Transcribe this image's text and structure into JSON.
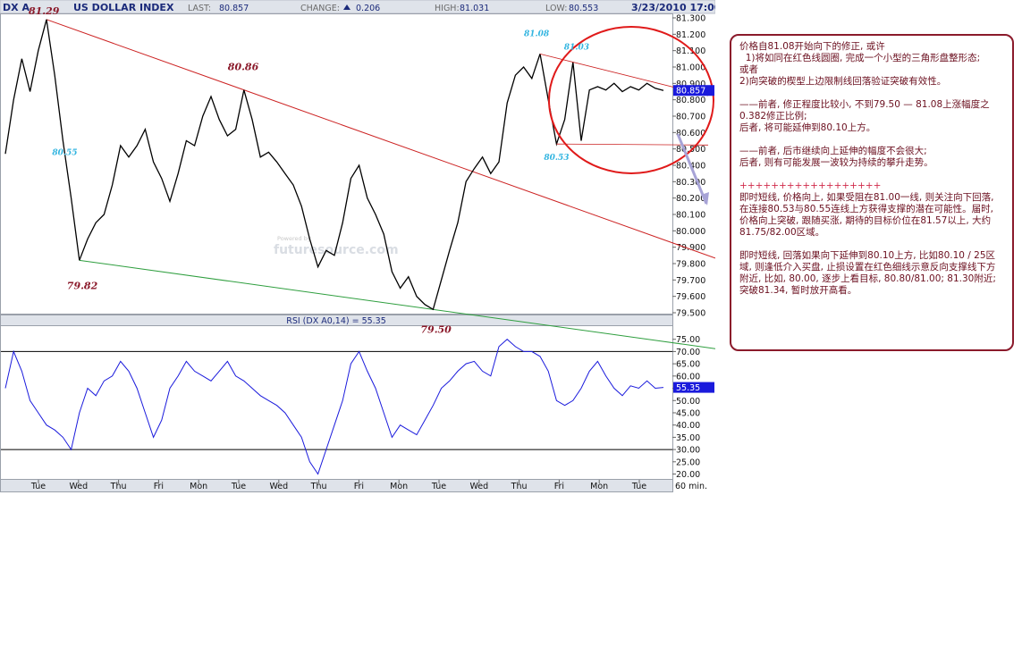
{
  "header": {
    "symbol": "DX A",
    "name": "US DOLLAR INDEX",
    "last_label": "LAST:",
    "last_value": "80.857",
    "change_label": "CHANGE:",
    "change_value": "0.206",
    "high_label": "HIGH:",
    "high_value": "81.031",
    "low_label": "LOW:",
    "low_value": "80.553",
    "datetime": "3/23/2010 17:00"
  },
  "colors": {
    "price": "#000000",
    "rsi": "#1a1adc",
    "trend_down": "#cc2222",
    "trend_up": "#2e9e3e",
    "annotation_red": "#8b1a2b",
    "annotation_cyan": "#33b5e0",
    "arrow": "#a7a3d6",
    "tag_bg": "#1a1adc"
  },
  "watermark": {
    "line1": "Powered by",
    "line2": "futuresource.com"
  },
  "chart_data": [
    {
      "type": "line",
      "name": "US DOLLAR INDEX 60 min",
      "title": "US DOLLAR INDEX",
      "ylim": [
        79.5,
        81.3
      ],
      "y_ticks": [
        "81.300",
        "81.200",
        "81.100",
        "81.000",
        "80.900",
        "80.800",
        "80.700",
        "80.600",
        "80.500",
        "80.400",
        "80.300",
        "80.200",
        "80.100",
        "80.000",
        "79.900",
        "79.800",
        "79.700",
        "79.600",
        "79.500"
      ],
      "x_labels": [
        "Tue",
        "Wed",
        "Thu",
        "Fri",
        "Mon",
        "Tue",
        "Wed",
        "Thu",
        "Fri",
        "Mon",
        "Tue",
        "Wed",
        "Thu",
        "Fri",
        "Mon",
        "Tue"
      ],
      "x_unit": "60 min.",
      "last_tag": "80.857",
      "x": [
        0,
        2,
        4,
        6,
        8,
        10,
        12,
        14,
        16,
        18,
        20,
        22,
        24,
        26,
        28,
        30,
        32,
        34,
        36,
        38,
        40,
        42,
        44,
        46,
        48,
        50,
        52,
        54,
        56,
        58,
        60,
        62,
        64,
        66,
        68,
        70,
        72,
        74,
        76,
        78,
        80,
        82,
        84,
        86,
        88,
        90,
        92,
        94,
        96,
        98,
        100,
        102,
        104,
        106,
        108,
        110,
        112,
        114,
        116,
        118,
        120,
        122,
        124,
        126,
        128,
        130,
        132,
        134,
        136,
        138,
        140,
        142,
        144,
        146,
        148,
        150,
        152,
        154,
        156,
        158,
        160
      ],
      "values": [
        80.47,
        80.8,
        81.05,
        80.85,
        81.1,
        81.29,
        80.95,
        80.55,
        80.2,
        79.82,
        79.95,
        80.05,
        80.1,
        80.28,
        80.52,
        80.45,
        80.52,
        80.62,
        80.42,
        80.32,
        80.18,
        80.35,
        80.55,
        80.52,
        80.7,
        80.82,
        80.68,
        80.58,
        80.62,
        80.86,
        80.68,
        80.45,
        80.48,
        80.42,
        80.35,
        80.28,
        80.15,
        79.95,
        79.78,
        79.88,
        79.85,
        80.05,
        80.32,
        80.4,
        80.2,
        80.1,
        79.98,
        79.75,
        79.65,
        79.72,
        79.6,
        79.55,
        79.52,
        79.7,
        79.88,
        80.05,
        80.3,
        80.38,
        80.45,
        80.35,
        80.42,
        80.78,
        80.95,
        81.0,
        80.93,
        81.08,
        80.8,
        80.53,
        80.68,
        81.03,
        80.55,
        80.86,
        80.88,
        80.86,
        80.9,
        80.85,
        80.88,
        80.86,
        80.9,
        80.87,
        80.857
      ],
      "annotations": [
        "81.29",
        "80.86",
        "79.82",
        "79.50",
        "81.08",
        "81.03",
        "80.53",
        "80.55"
      ]
    },
    {
      "type": "line",
      "name": "RSI (DX A0,14)",
      "title": "RSI (DX A0,14) = 55.35",
      "ylim": [
        18,
        80
      ],
      "y_ticks": [
        "75.00",
        "70.00",
        "65.00",
        "60.00",
        "55.00",
        "50.00",
        "45.00",
        "40.00",
        "35.00",
        "30.00",
        "25.00",
        "20.00"
      ],
      "reference_lines": [
        70,
        30
      ],
      "last_tag": "55.35",
      "x": [
        0,
        2,
        4,
        6,
        8,
        10,
        12,
        14,
        16,
        18,
        20,
        22,
        24,
        26,
        28,
        30,
        32,
        34,
        36,
        38,
        40,
        42,
        44,
        46,
        48,
        50,
        52,
        54,
        56,
        58,
        60,
        62,
        64,
        66,
        68,
        70,
        72,
        74,
        76,
        78,
        80,
        82,
        84,
        86,
        88,
        90,
        92,
        94,
        96,
        98,
        100,
        102,
        104,
        106,
        108,
        110,
        112,
        114,
        116,
        118,
        120,
        122,
        124,
        126,
        128,
        130,
        132,
        134,
        136,
        138,
        140,
        142,
        144,
        146,
        148,
        150,
        152,
        154,
        156,
        158,
        160
      ],
      "values": [
        55,
        70,
        62,
        50,
        45,
        40,
        38,
        35,
        30,
        45,
        55,
        52,
        58,
        60,
        66,
        62,
        55,
        45,
        35,
        42,
        55,
        60,
        66,
        62,
        60,
        58,
        62,
        66,
        60,
        58,
        55,
        52,
        50,
        48,
        45,
        40,
        35,
        25,
        20,
        30,
        40,
        50,
        65,
        70,
        62,
        55,
        45,
        35,
        40,
        38,
        36,
        42,
        48,
        55,
        58,
        62,
        65,
        66,
        62,
        60,
        72,
        75,
        72,
        70,
        70,
        68,
        62,
        50,
        48,
        50,
        55,
        62,
        66,
        60,
        55,
        52,
        56,
        55,
        58,
        55,
        55.35
      ]
    }
  ],
  "notes": [
    "价格自81.08开始向下的修正, 或许",
    "  1)将如同在红色线圆圈, 完成一个小型的三角形盘整形态;",
    "或者",
    "2)向突破的楔型上边限制线回落验证突破有效性。",
    "",
    "——前者, 修正程度比较小, 不到79.50 — 81.08上涨幅度之0.382修正比例;",
    "后者, 将可能延伸到80.10上方。",
    "",
    "——前者, 后市继续向上延伸的幅度不会很大;",
    "后者, 则有可能发展一波较为持续的攀升走势。",
    "",
    "++++++++++++++++++",
    "即时短线, 价格向上, 如果受阻在81.00一线, 则关注向下回落, 在连接80.53与80.55连线上方获得支撑的潜在可能性。届时, 价格向上突破, 跟随买涨, 期待的目标价位在81.57以上, 大约81.75/82.00区域。",
    "",
    "即时短线, 回落如果向下延伸到80.10上方, 比如80.10 / 25区域, 则逢低介入买盘, 止损设置在红色细线示意反向支撑线下方附近, 比如, 80.00, 逐步上看目标, 80.80/81.00; 81.30附近; 突破81.34, 暂时放开高看。"
  ]
}
